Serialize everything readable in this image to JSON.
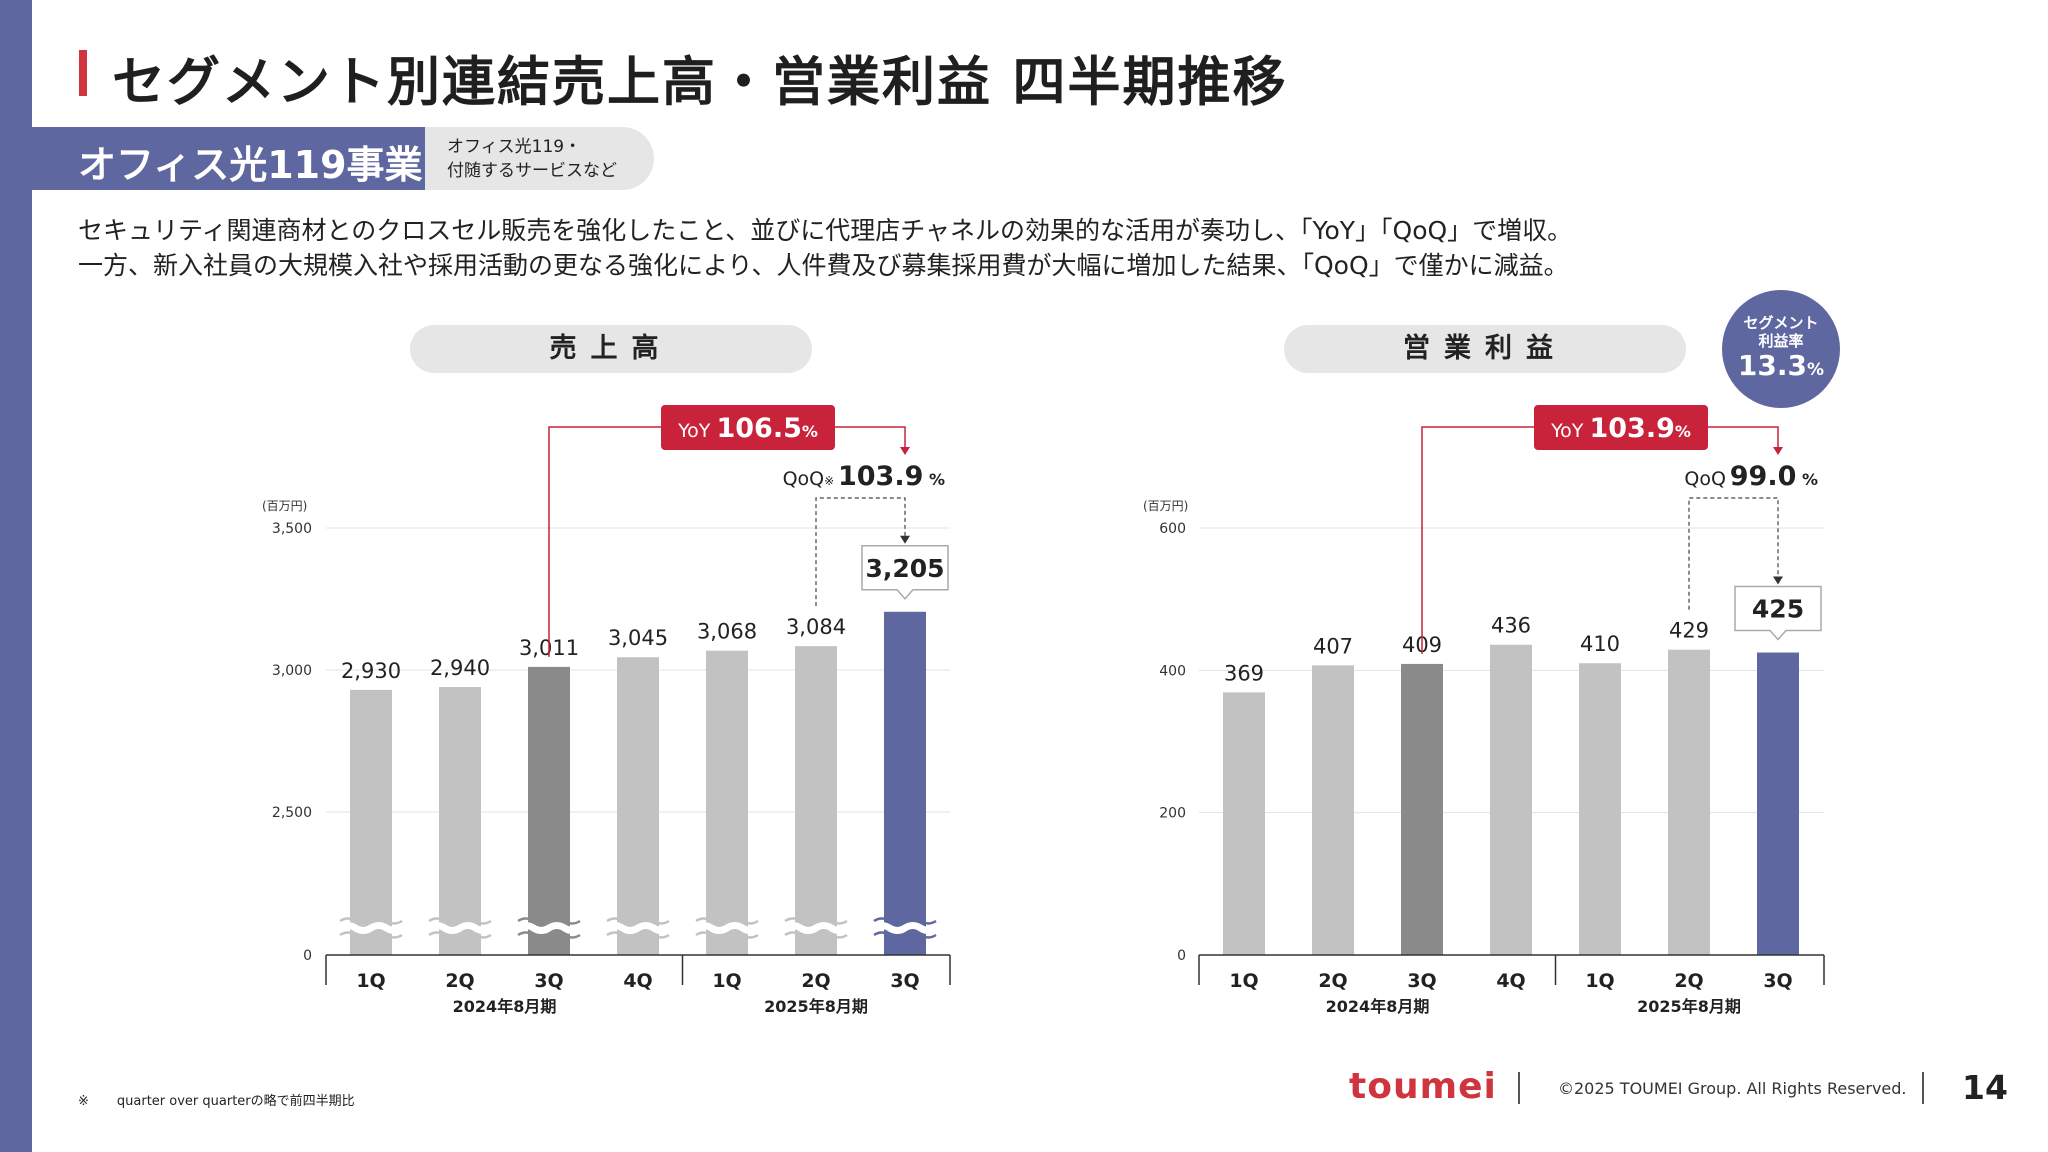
{
  "title": "セグメント別連結売上高・営業利益 四半期推移",
  "segment": {
    "name": "オフィス光119事業",
    "desc_line1": "オフィス光119・",
    "desc_line2": "付随するサービスなど"
  },
  "description": {
    "line1": "セキュリティ関連商材とのクロスセル販売を強化したこと、並びに代理店チャネルの効果的な活用が奏功し、「YoY」「QoQ」で増収。",
    "line2": "一方、新入社員の大規模入社や採用活動の更なる強化により、人件費及び募集採用費が大幅に増加した結果、「QoQ」で僅かに減益。"
  },
  "rate_badge": {
    "line1": "セグメント",
    "line2": "利益率",
    "value": "13.3",
    "unit": "%"
  },
  "colors": {
    "accent": "#5f67a0",
    "red": "#c8233b",
    "bar_light": "#c2c2c2",
    "bar_dark": "#8a8a8a",
    "bar_current": "#5f67a0"
  },
  "chart_data": [
    {
      "type": "bar",
      "title": "売上高",
      "unit_label": "(百万円)",
      "categories": [
        "1Q",
        "2Q",
        "3Q",
        "4Q",
        "1Q",
        "2Q",
        "3Q"
      ],
      "groups": [
        "2024年8月期",
        "2025年8月期"
      ],
      "group_sizes": [
        4,
        3
      ],
      "values": [
        2930,
        2940,
        3011,
        3045,
        3068,
        3084,
        3205
      ],
      "value_labels": [
        "2,930",
        "2,940",
        "3,011",
        "3,045",
        "3,068",
        "3,084",
        "3,205"
      ],
      "yticks": [
        0,
        2500,
        3000,
        3500
      ],
      "ytick_labels": [
        "0",
        "2,500",
        "3,000",
        "3,500"
      ],
      "axis_break": true,
      "highlight_prev_year_index": 2,
      "current_index": 6,
      "yoy": {
        "label": "YoY",
        "value": "106.5",
        "unit": "%"
      },
      "qoq": {
        "label": "QoQ",
        "mark": "※",
        "value": "103.9",
        "unit": "%"
      }
    },
    {
      "type": "bar",
      "title": "営業利益",
      "unit_label": "(百万円)",
      "categories": [
        "1Q",
        "2Q",
        "3Q",
        "4Q",
        "1Q",
        "2Q",
        "3Q"
      ],
      "groups": [
        "2024年8月期",
        "2025年8月期"
      ],
      "group_sizes": [
        4,
        3
      ],
      "values": [
        369,
        407,
        409,
        436,
        410,
        429,
        425
      ],
      "value_labels": [
        "369",
        "407",
        "409",
        "436",
        "410",
        "429",
        "425"
      ],
      "yticks": [
        0,
        200,
        400,
        600
      ],
      "ytick_labels": [
        "0",
        "200",
        "400",
        "600"
      ],
      "ylim": [
        0,
        600
      ],
      "axis_break": false,
      "highlight_prev_year_index": 2,
      "current_index": 6,
      "yoy": {
        "label": "YoY",
        "value": "103.9",
        "unit": "%"
      },
      "qoq": {
        "label": "QoQ",
        "mark": "",
        "value": "99.0",
        "unit": "%"
      }
    }
  ],
  "footnote": {
    "mark": "※",
    "text": "quarter over quarterの略で前四半期比"
  },
  "footer": {
    "logo": "toumei",
    "copyright": "©2025 TOUMEI Group. All Rights Reserved.",
    "page": "14"
  }
}
